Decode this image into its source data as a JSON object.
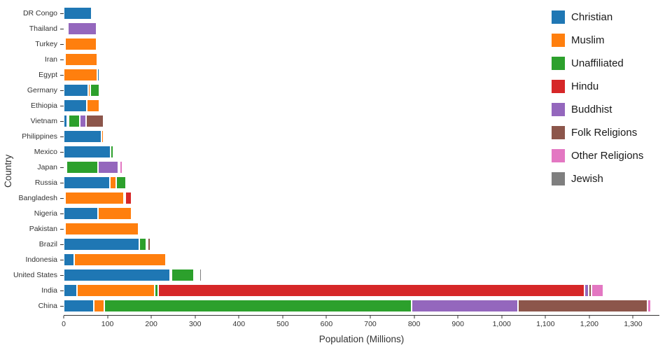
{
  "chart_data": {
    "type": "bar",
    "orientation": "horizontal",
    "stacked": true,
    "title": "",
    "xlabel": "Population (Millions)",
    "ylabel": "Country",
    "x_axis_max": 1360,
    "grid": false,
    "legend_position": "top-right",
    "x_ticks": [
      {
        "value": 0,
        "label": "0"
      },
      {
        "value": 100,
        "label": "100"
      },
      {
        "value": 200,
        "label": "200"
      },
      {
        "value": 300,
        "label": "300"
      },
      {
        "value": 400,
        "label": "400"
      },
      {
        "value": 500,
        "label": "500"
      },
      {
        "value": 600,
        "label": "600"
      },
      {
        "value": 700,
        "label": "700"
      },
      {
        "value": 800,
        "label": "800"
      },
      {
        "value": 900,
        "label": "900"
      },
      {
        "value": 1000,
        "label": "1,000"
      },
      {
        "value": 1100,
        "label": "1,100"
      },
      {
        "value": 1200,
        "label": "1,200"
      },
      {
        "value": 1300,
        "label": "1,300"
      }
    ],
    "legend": [
      {
        "name": "Christian",
        "color": "#1f77b4"
      },
      {
        "name": "Muslim",
        "color": "#ff7f0e"
      },
      {
        "name": "Unaffiliated",
        "color": "#2ca02c"
      },
      {
        "name": "Hindu",
        "color": "#d62728"
      },
      {
        "name": "Buddhist",
        "color": "#9467bd"
      },
      {
        "name": "Folk Religions",
        "color": "#8c564b"
      },
      {
        "name": "Other Religions",
        "color": "#e377c2"
      },
      {
        "name": "Jewish",
        "color": "#7f7f7f"
      }
    ],
    "countries": [
      {
        "name": "DR Congo",
        "total": 67.5,
        "segments": [
          {
            "religion": "Christian",
            "value": 63.2
          },
          {
            "religion": "Muslim",
            "value": 1.0
          },
          {
            "religion": "Unaffiliated",
            "value": 1.2
          },
          {
            "religion": "Folk Religions",
            "value": 1.7
          },
          {
            "religion": "Other Religions",
            "value": 0.4
          }
        ]
      },
      {
        "name": "Thailand",
        "total": 70.0,
        "segments": [
          {
            "religion": "Christian",
            "value": 0.9
          },
          {
            "religion": "Muslim",
            "value": 3.9
          },
          {
            "religion": "Unaffiliated",
            "value": 0.3
          },
          {
            "religion": "Buddhist",
            "value": 64.4
          },
          {
            "religion": "Folk Religions",
            "value": 0.5
          }
        ]
      },
      {
        "name": "Turkey",
        "total": 72.6,
        "segments": [
          {
            "religion": "Christian",
            "value": 0.3
          },
          {
            "religion": "Muslim",
            "value": 71.3
          },
          {
            "religion": "Unaffiliated",
            "value": 0.9
          },
          {
            "religion": "Other Religions",
            "value": 0.1
          }
        ]
      },
      {
        "name": "Iran",
        "total": 74.3,
        "segments": [
          {
            "religion": "Christian",
            "value": 0.2
          },
          {
            "religion": "Muslim",
            "value": 73.6
          },
          {
            "religion": "Unaffiliated",
            "value": 0.2
          },
          {
            "religion": "Other Religions",
            "value": 0.3
          }
        ]
      },
      {
        "name": "Egypt",
        "total": 81.1,
        "segments": [
          {
            "religion": "Muslim",
            "value": 76.8
          },
          {
            "religion": "Christian",
            "value": 4.1
          },
          {
            "religion": "Unaffiliated",
            "value": 0.2
          }
        ]
      },
      {
        "name": "Germany",
        "total": 82.4,
        "segments": [
          {
            "religion": "Christian",
            "value": 56.5
          },
          {
            "religion": "Muslim",
            "value": 4.8
          },
          {
            "religion": "Unaffiliated",
            "value": 20.4
          },
          {
            "religion": "Buddhist",
            "value": 0.3
          },
          {
            "religion": "Other Religions",
            "value": 0.2
          },
          {
            "religion": "Jewish",
            "value": 0.2
          }
        ]
      },
      {
        "name": "Ethiopia",
        "total": 83.5,
        "segments": [
          {
            "religion": "Christian",
            "value": 52.1
          },
          {
            "religion": "Muslim",
            "value": 28.7
          },
          {
            "religion": "Unaffiliated",
            "value": 0.4
          },
          {
            "religion": "Folk Religions",
            "value": 2.3
          }
        ]
      },
      {
        "name": "Vietnam",
        "total": 88.0,
        "segments": [
          {
            "religion": "Christian",
            "value": 7.2
          },
          {
            "religion": "Muslim",
            "value": 0.2
          },
          {
            "religion": "Unaffiliated",
            "value": 26.2
          },
          {
            "religion": "Buddhist",
            "value": 14.4
          },
          {
            "religion": "Folk Religions",
            "value": 39.8
          },
          {
            "religion": "Other Religions",
            "value": 0.2
          }
        ]
      },
      {
        "name": "Philippines",
        "total": 93.0,
        "segments": [
          {
            "religion": "Christian",
            "value": 86.4
          },
          {
            "religion": "Muslim",
            "value": 5.0
          },
          {
            "religion": "Unaffiliated",
            "value": 0.1
          },
          {
            "religion": "Folk Religions",
            "value": 1.4
          },
          {
            "religion": "Other Religions",
            "value": 0.1
          }
        ]
      },
      {
        "name": "Mexico",
        "total": 113.3,
        "segments": [
          {
            "religion": "Christian",
            "value": 107.8
          },
          {
            "religion": "Unaffiliated",
            "value": 5.3
          },
          {
            "religion": "Folk Religions",
            "value": 0.1
          },
          {
            "religion": "Jewish",
            "value": 0.1
          }
        ]
      },
      {
        "name": "Japan",
        "total": 126.7,
        "segments": [
          {
            "religion": "Christian",
            "value": 2.0
          },
          {
            "religion": "Muslim",
            "value": 0.2
          },
          {
            "religion": "Unaffiliated",
            "value": 72.1
          },
          {
            "religion": "Buddhist",
            "value": 45.8
          },
          {
            "religion": "Folk Religions",
            "value": 0.5
          },
          {
            "religion": "Other Religions",
            "value": 6.1
          }
        ]
      },
      {
        "name": "Russia",
        "total": 143.3,
        "segments": [
          {
            "religion": "Christian",
            "value": 105.2
          },
          {
            "religion": "Muslim",
            "value": 14.3
          },
          {
            "religion": "Unaffiliated",
            "value": 23.2
          },
          {
            "religion": "Buddhist",
            "value": 0.2
          },
          {
            "religion": "Folk Religions",
            "value": 0.2
          },
          {
            "religion": "Jewish",
            "value": 0.2
          }
        ]
      },
      {
        "name": "Bangladesh",
        "total": 150.0,
        "segments": [
          {
            "religion": "Christian",
            "value": 0.7
          },
          {
            "religion": "Muslim",
            "value": 134.4
          },
          {
            "religion": "Unaffiliated",
            "value": 0.4
          },
          {
            "religion": "Hindu",
            "value": 13.5
          },
          {
            "religion": "Buddhist",
            "value": 0.7
          },
          {
            "religion": "Folk Religions",
            "value": 0.3
          }
        ]
      },
      {
        "name": "Nigeria",
        "total": 158.5,
        "segments": [
          {
            "religion": "Christian",
            "value": 78.1
          },
          {
            "religion": "Muslim",
            "value": 77.3
          },
          {
            "religion": "Unaffiliated",
            "value": 0.7
          },
          {
            "religion": "Folk Religions",
            "value": 2.2
          },
          {
            "religion": "Other Religions",
            "value": 0.2
          }
        ]
      },
      {
        "name": "Pakistan",
        "total": 173.5,
        "segments": [
          {
            "religion": "Christian",
            "value": 2.8
          },
          {
            "religion": "Muslim",
            "value": 167.4
          },
          {
            "religion": "Hindu",
            "value": 3.3
          }
        ]
      },
      {
        "name": "Brazil",
        "total": 194.9,
        "segments": [
          {
            "religion": "Christian",
            "value": 173.3
          },
          {
            "religion": "Unaffiliated",
            "value": 15.4
          },
          {
            "religion": "Buddhist",
            "value": 0.5
          },
          {
            "religion": "Folk Religions",
            "value": 5.5
          },
          {
            "religion": "Other Religions",
            "value": 0.1
          },
          {
            "religion": "Jewish",
            "value": 0.1
          }
        ]
      },
      {
        "name": "Indonesia",
        "total": 239.6,
        "segments": [
          {
            "religion": "Christian",
            "value": 23.7
          },
          {
            "religion": "Muslim",
            "value": 209.1
          },
          {
            "religion": "Unaffiliated",
            "value": 0.2
          },
          {
            "religion": "Hindu",
            "value": 4.1
          },
          {
            "religion": "Buddhist",
            "value": 1.7
          },
          {
            "religion": "Folk Religions",
            "value": 0.8
          }
        ]
      },
      {
        "name": "United States",
        "total": 309.7,
        "segments": [
          {
            "religion": "Christian",
            "value": 243.1
          },
          {
            "religion": "Muslim",
            "value": 2.8
          },
          {
            "religion": "Unaffiliated",
            "value": 50.2
          },
          {
            "religion": "Hindu",
            "value": 1.8
          },
          {
            "religion": "Buddhist",
            "value": 3.6
          },
          {
            "religion": "Folk Religions",
            "value": 0.6
          },
          {
            "religion": "Other Religions",
            "value": 1.9
          },
          {
            "religion": "Jewish",
            "value": 5.7
          }
        ]
      },
      {
        "name": "India",
        "total": 1232.1,
        "segments": [
          {
            "religion": "Christian",
            "value": 31.1
          },
          {
            "religion": "Muslim",
            "value": 176.2
          },
          {
            "religion": "Unaffiliated",
            "value": 8.7
          },
          {
            "religion": "Hindu",
            "value": 973.8
          },
          {
            "religion": "Buddhist",
            "value": 9.2
          },
          {
            "religion": "Folk Religions",
            "value": 5.5
          },
          {
            "religion": "Other Religions",
            "value": 27.6
          }
        ]
      },
      {
        "name": "China",
        "total": 1341.3,
        "segments": [
          {
            "religion": "Christian",
            "value": 68.4
          },
          {
            "religion": "Muslim",
            "value": 24.7
          },
          {
            "religion": "Unaffiliated",
            "value": 700.7
          },
          {
            "religion": "Buddhist",
            "value": 244.1
          },
          {
            "religion": "Folk Religions",
            "value": 294.3
          },
          {
            "religion": "Other Religions",
            "value": 9.1
          }
        ]
      }
    ]
  }
}
